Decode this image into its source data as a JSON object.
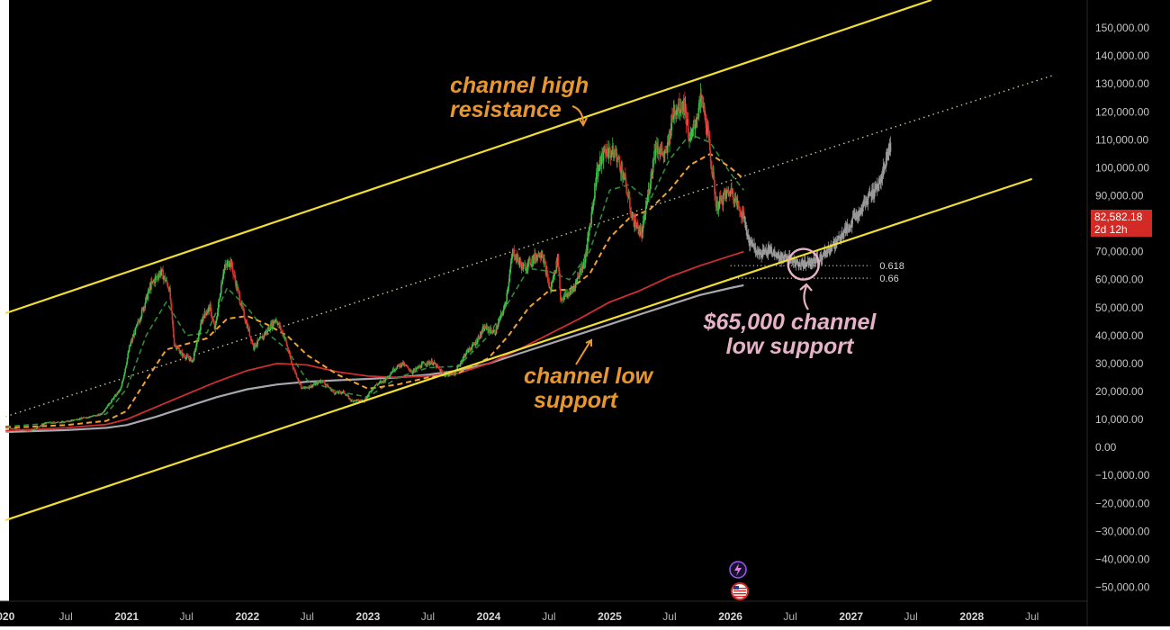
{
  "colors": {
    "background": "#000000",
    "channel": "#f2de32",
    "midline": "#c8c39a",
    "candle_up": "#3ec04a",
    "candle_down": "#d8322f",
    "projection": "#9a9a9a",
    "ma_fast": "#2f8a3a",
    "ma_medium": "#f0a136",
    "ma_red": "#cc2f2f",
    "ma_gray": "#a7a7ad",
    "annotation_orange": "#e8962f",
    "annotation_pink": "#e7b2c7",
    "price_tag": "#d32a25"
  },
  "annotations": {
    "channel_high_line1": "channel high",
    "channel_high_line2": "resistance",
    "channel_low_line1": "channel low",
    "channel_low_line2": "support",
    "support_line1": "$65,000 channel",
    "support_line2": "low support"
  },
  "price_tag": {
    "price": "82,582.18",
    "countdown": "2d 12h",
    "value": 82582.18
  },
  "icons": [
    "lightning-badge-icon",
    "us-flag-icon"
  ],
  "chart_data": {
    "type": "candlestick",
    "title": "",
    "xlabel": "",
    "ylabel": "",
    "y_range": [
      -55000,
      160000
    ],
    "x_range": [
      "2019-12-15",
      "2028-12-15"
    ],
    "y_ticks": [
      150000,
      140000,
      130000,
      120000,
      110000,
      100000,
      90000,
      80000,
      70000,
      60000,
      50000,
      40000,
      30000,
      20000,
      10000,
      0,
      -10000,
      -20000,
      -30000,
      -40000,
      -50000
    ],
    "y_tick_labels": [
      "150,000.00",
      "140,000.00",
      "130,000.00",
      "120,000.00",
      "110,000.00",
      "100,000.00",
      "90,000.00",
      null,
      "70,000.00",
      "60,000.00",
      "50,000.00",
      "40,000.00",
      "30,000.00",
      "20,000.00",
      "10,000.00",
      "0.00",
      "−10,000.00",
      "−20,000.00",
      "−30,000.00",
      "−40,000.00",
      "−50,000.00"
    ],
    "x_ticks": [
      {
        "label": "020",
        "date": "2020-01-01"
      },
      {
        "label": "Jul",
        "date": "2020-07-01"
      },
      {
        "label": "2021",
        "date": "2021-01-01"
      },
      {
        "label": "Jul",
        "date": "2021-07-01"
      },
      {
        "label": "2022",
        "date": "2022-01-01"
      },
      {
        "label": "Jul",
        "date": "2022-07-01"
      },
      {
        "label": "2023",
        "date": "2023-01-01"
      },
      {
        "label": "Jul",
        "date": "2023-07-01"
      },
      {
        "label": "2024",
        "date": "2024-01-01"
      },
      {
        "label": "Jul",
        "date": "2024-07-01"
      },
      {
        "label": "2025",
        "date": "2025-01-01"
      },
      {
        "label": "Jul",
        "date": "2025-07-01"
      },
      {
        "label": "2026",
        "date": "2026-01-01"
      },
      {
        "label": "Jul",
        "date": "2026-07-01"
      },
      {
        "label": "2027",
        "date": "2027-01-01"
      },
      {
        "label": "Jul",
        "date": "2027-07-01"
      },
      {
        "label": "2028",
        "date": "2028-01-01"
      },
      {
        "label": "Jul",
        "date": "2028-07-01"
      }
    ],
    "channel_upper": [
      {
        "x": "2020-01-01",
        "y": 48000
      },
      {
        "x": "2027-09-01",
        "y": 160000
      }
    ],
    "channel_lower": [
      {
        "x": "2020-01-01",
        "y": -26000
      },
      {
        "x": "2028-07-01",
        "y": 96000
      }
    ],
    "channel_mid": [
      {
        "x": "2020-01-01",
        "y": 11000
      },
      {
        "x": "2028-09-01",
        "y": 133000
      }
    ],
    "fib_levels": [
      {
        "label": "0.618",
        "value": 65000,
        "from": "2026-01-01",
        "to": "2027-03-01"
      },
      {
        "label": "0.66",
        "value": 60500,
        "from": "2026-01-01",
        "to": "2027-03-01"
      }
    ],
    "price_path": [
      [
        "2020-01-01",
        7200
      ],
      [
        "2020-03-15",
        5800
      ],
      [
        "2020-05-01",
        8800
      ],
      [
        "2020-07-01",
        9200
      ],
      [
        "2020-09-01",
        10800
      ],
      [
        "2020-10-15",
        11800
      ],
      [
        "2020-11-15",
        16500
      ],
      [
        "2020-12-15",
        21000
      ],
      [
        "2021-01-10",
        36000
      ],
      [
        "2021-02-15",
        48000
      ],
      [
        "2021-03-15",
        58000
      ],
      [
        "2021-04-15",
        63000
      ],
      [
        "2021-05-10",
        57000
      ],
      [
        "2021-05-25",
        37000
      ],
      [
        "2021-06-20",
        33000
      ],
      [
        "2021-07-20",
        31000
      ],
      [
        "2021-08-20",
        47000
      ],
      [
        "2021-09-10",
        50000
      ],
      [
        "2021-09-25",
        42000
      ],
      [
        "2021-10-20",
        63000
      ],
      [
        "2021-11-10",
        67000
      ],
      [
        "2021-12-01",
        57000
      ],
      [
        "2021-12-20",
        48000
      ],
      [
        "2022-01-20",
        36000
      ],
      [
        "2022-02-20",
        40000
      ],
      [
        "2022-03-28",
        46000
      ],
      [
        "2022-04-25",
        39000
      ],
      [
        "2022-05-15",
        30000
      ],
      [
        "2022-06-15",
        21000
      ],
      [
        "2022-07-15",
        22000
      ],
      [
        "2022-08-15",
        24000
      ],
      [
        "2022-09-20",
        19500
      ],
      [
        "2022-10-20",
        19800
      ],
      [
        "2022-11-10",
        16800
      ],
      [
        "2022-12-20",
        16700
      ],
      [
        "2023-01-20",
        22000
      ],
      [
        "2023-02-20",
        24000
      ],
      [
        "2023-03-20",
        28000
      ],
      [
        "2023-04-15",
        30000
      ],
      [
        "2023-05-15",
        27000
      ],
      [
        "2023-06-20",
        30000
      ],
      [
        "2023-07-15",
        30500
      ],
      [
        "2023-08-20",
        26000
      ],
      [
        "2023-09-20",
        26500
      ],
      [
        "2023-10-25",
        34000
      ],
      [
        "2023-11-20",
        37000
      ],
      [
        "2023-12-20",
        43000
      ],
      [
        "2024-01-20",
        41000
      ],
      [
        "2024-02-20",
        51000
      ],
      [
        "2024-03-14",
        70000
      ],
      [
        "2024-04-15",
        64000
      ],
      [
        "2024-05-20",
        68000
      ],
      [
        "2024-06-10",
        70000
      ],
      [
        "2024-07-05",
        56000
      ],
      [
        "2024-07-29",
        68000
      ],
      [
        "2024-08-05",
        53000
      ],
      [
        "2024-09-10",
        56000
      ],
      [
        "2024-10-20",
        68000
      ],
      [
        "2024-11-12",
        88000
      ],
      [
        "2024-11-22",
        98000
      ],
      [
        "2024-12-17",
        106000
      ],
      [
        "2025-01-20",
        105000
      ],
      [
        "2025-02-15",
        96000
      ],
      [
        "2025-03-10",
        82000
      ],
      [
        "2025-04-08",
        76000
      ],
      [
        "2025-05-20",
        108000
      ],
      [
        "2025-06-20",
        104000
      ],
      [
        "2025-07-14",
        121000
      ],
      [
        "2025-08-14",
        123000
      ],
      [
        "2025-09-01",
        109000
      ],
      [
        "2025-10-06",
        125000
      ],
      [
        "2025-10-25",
        112000
      ],
      [
        "2025-11-20",
        86000
      ],
      [
        "2025-12-15",
        90000
      ],
      [
        "2026-01-05",
        92000
      ],
      [
        "2026-01-25",
        86000
      ],
      [
        "2026-02-10",
        82582
      ]
    ],
    "projection_path": [
      [
        "2026-02-10",
        82582
      ],
      [
        "2026-03-01",
        73000
      ],
      [
        "2026-04-01",
        69000
      ],
      [
        "2026-05-01",
        71000
      ],
      [
        "2026-06-01",
        68000
      ],
      [
        "2026-07-01",
        67000
      ],
      [
        "2026-08-01",
        65000
      ],
      [
        "2026-09-01",
        66000
      ],
      [
        "2026-10-01",
        68000
      ],
      [
        "2026-11-01",
        71000
      ],
      [
        "2026-12-01",
        75000
      ],
      [
        "2027-01-01",
        80000
      ],
      [
        "2027-02-01",
        86000
      ],
      [
        "2027-03-01",
        90000
      ],
      [
        "2027-04-01",
        96000
      ],
      [
        "2027-05-01",
        109000
      ]
    ],
    "ma_fast": [
      [
        "2020-01-01",
        7500
      ],
      [
        "2020-07-01",
        9000
      ],
      [
        "2020-11-01",
        12000
      ],
      [
        "2021-01-01",
        21000
      ],
      [
        "2021-03-01",
        40000
      ],
      [
        "2021-05-01",
        52000
      ],
      [
        "2021-07-01",
        40000
      ],
      [
        "2021-09-01",
        41000
      ],
      [
        "2021-11-01",
        57000
      ],
      [
        "2022-01-01",
        50000
      ],
      [
        "2022-03-01",
        41000
      ],
      [
        "2022-05-01",
        35000
      ],
      [
        "2022-07-01",
        24000
      ],
      [
        "2022-10-01",
        20000
      ],
      [
        "2023-01-01",
        18000
      ],
      [
        "2023-04-01",
        25000
      ],
      [
        "2023-07-01",
        28500
      ],
      [
        "2023-10-01",
        29000
      ],
      [
        "2024-01-01",
        40000
      ],
      [
        "2024-03-01",
        52000
      ],
      [
        "2024-05-01",
        64000
      ],
      [
        "2024-07-01",
        63000
      ],
      [
        "2024-09-01",
        60000
      ],
      [
        "2024-11-01",
        70000
      ],
      [
        "2025-01-01",
        92000
      ],
      [
        "2025-03-01",
        94000
      ],
      [
        "2025-05-01",
        88000
      ],
      [
        "2025-07-01",
        103000
      ],
      [
        "2025-09-01",
        112000
      ],
      [
        "2025-11-01",
        109000
      ],
      [
        "2026-01-01",
        98000
      ],
      [
        "2026-02-10",
        92000
      ]
    ],
    "ma_medium": [
      [
        "2020-01-01",
        7000
      ],
      [
        "2020-07-01",
        8000
      ],
      [
        "2020-11-01",
        9500
      ],
      [
        "2021-01-01",
        13000
      ],
      [
        "2021-03-01",
        24000
      ],
      [
        "2021-05-01",
        35000
      ],
      [
        "2021-07-01",
        37000
      ],
      [
        "2021-09-01",
        39000
      ],
      [
        "2021-11-01",
        46000
      ],
      [
        "2022-01-01",
        47000
      ],
      [
        "2022-03-01",
        44000
      ],
      [
        "2022-05-01",
        40000
      ],
      [
        "2022-07-01",
        33000
      ],
      [
        "2022-10-01",
        26000
      ],
      [
        "2023-01-01",
        21000
      ],
      [
        "2023-04-01",
        22500
      ],
      [
        "2023-07-01",
        25000
      ],
      [
        "2023-10-01",
        26500
      ],
      [
        "2024-01-01",
        32000
      ],
      [
        "2024-03-01",
        40000
      ],
      [
        "2024-05-01",
        50000
      ],
      [
        "2024-07-01",
        56000
      ],
      [
        "2024-09-01",
        56500
      ],
      [
        "2024-11-01",
        62000
      ],
      [
        "2025-01-01",
        75000
      ],
      [
        "2025-03-01",
        82000
      ],
      [
        "2025-05-01",
        85000
      ],
      [
        "2025-07-01",
        92000
      ],
      [
        "2025-09-01",
        101000
      ],
      [
        "2025-11-01",
        105000
      ],
      [
        "2026-01-01",
        100000
      ],
      [
        "2026-02-10",
        96000
      ]
    ],
    "ma_red": [
      [
        "2020-01-01",
        6000
      ],
      [
        "2020-07-01",
        7000
      ],
      [
        "2020-11-01",
        8200
      ],
      [
        "2021-01-01",
        10000
      ],
      [
        "2021-04-01",
        14500
      ],
      [
        "2021-07-01",
        19000
      ],
      [
        "2021-10-01",
        23500
      ],
      [
        "2022-01-01",
        27500
      ],
      [
        "2022-04-01",
        30000
      ],
      [
        "2022-07-01",
        29500
      ],
      [
        "2022-10-01",
        27000
      ],
      [
        "2023-01-01",
        25500
      ],
      [
        "2023-04-01",
        25000
      ],
      [
        "2023-07-01",
        25500
      ],
      [
        "2023-10-01",
        26500
      ],
      [
        "2024-01-01",
        30000
      ],
      [
        "2024-04-01",
        35000
      ],
      [
        "2024-07-01",
        40500
      ],
      [
        "2024-10-01",
        46000
      ],
      [
        "2025-01-01",
        52000
      ],
      [
        "2025-04-01",
        56000
      ],
      [
        "2025-07-01",
        61000
      ],
      [
        "2025-10-01",
        65000
      ],
      [
        "2026-01-01",
        68500
      ],
      [
        "2026-02-10",
        70000
      ]
    ],
    "ma_gray": [
      [
        "2020-01-01",
        5500
      ],
      [
        "2020-07-01",
        6200
      ],
      [
        "2020-11-01",
        7000
      ],
      [
        "2021-01-01",
        8000
      ],
      [
        "2021-04-01",
        11000
      ],
      [
        "2021-07-01",
        14500
      ],
      [
        "2021-10-01",
        18000
      ],
      [
        "2022-01-01",
        20800
      ],
      [
        "2022-04-01",
        22500
      ],
      [
        "2022-07-01",
        23500
      ],
      [
        "2022-10-01",
        24000
      ],
      [
        "2023-01-01",
        24500
      ],
      [
        "2023-04-01",
        25000
      ],
      [
        "2023-07-01",
        26000
      ],
      [
        "2023-10-01",
        27500
      ],
      [
        "2024-01-01",
        30000
      ],
      [
        "2024-04-01",
        33500
      ],
      [
        "2024-07-01",
        37000
      ],
      [
        "2024-10-01",
        40500
      ],
      [
        "2025-01-01",
        44000
      ],
      [
        "2025-04-01",
        47500
      ],
      [
        "2025-07-01",
        51000
      ],
      [
        "2025-10-01",
        54500
      ],
      [
        "2026-01-01",
        57000
      ],
      [
        "2026-02-10",
        58000
      ]
    ],
    "support_circle": {
      "x": "2026-08-10",
      "y": 65500
    }
  }
}
